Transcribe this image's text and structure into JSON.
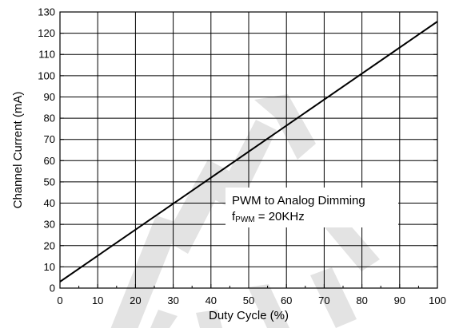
{
  "watermark": {
    "text": "NOT RECOMMENDED FOR NEW DESIGNS",
    "color": "#e0e0e0"
  },
  "chart_data": {
    "type": "line",
    "title": "",
    "xlabel": "Duty Cycle (%)",
    "ylabel": "Channel Current (mA)",
    "xlim": [
      0,
      100
    ],
    "ylim": [
      0,
      130
    ],
    "xticks": [
      0,
      10,
      20,
      30,
      40,
      50,
      60,
      70,
      80,
      90,
      100
    ],
    "yticks": [
      0,
      10,
      20,
      30,
      40,
      50,
      60,
      70,
      80,
      90,
      100,
      110,
      120,
      130
    ],
    "grid": true,
    "annotation": {
      "line1": "PWM to Analog Dimming",
      "line2_prefix": "f",
      "line2_sub": "PWM",
      "line2_suffix": " = 20KHz"
    },
    "series": [
      {
        "x": [
          0,
          100
        ],
        "y": [
          3,
          125.5
        ],
        "color": "#000000"
      }
    ]
  }
}
